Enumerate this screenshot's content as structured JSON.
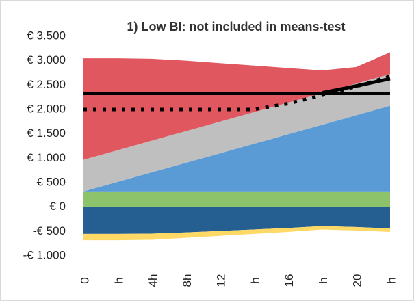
{
  "chart_data": {
    "type": "area",
    "title": "1) Low BI: not included in means-test",
    "categories": [
      "0",
      "h",
      "4h",
      "8h",
      "12",
      "h",
      "16",
      "h",
      "20",
      "h"
    ],
    "ylim": [
      -1000,
      3500
    ],
    "yticks": [
      {
        "value": -1000,
        "label": "-€ 1.000"
      },
      {
        "value": -500,
        "label": "-€ 500"
      },
      {
        "value": 0,
        "label": "€ 0"
      },
      {
        "value": 500,
        "label": "€ 500"
      },
      {
        "value": 1000,
        "label": "€ 1.000"
      },
      {
        "value": 1500,
        "label": "€ 1.500"
      },
      {
        "value": 2000,
        "label": "€ 2.000"
      },
      {
        "value": 2500,
        "label": "€ 2.500"
      },
      {
        "value": 3000,
        "label": "€ 3.000"
      },
      {
        "value": 3500,
        "label": "€ 3.500"
      }
    ],
    "grid": false,
    "series": [
      {
        "type": "area",
        "color": "#8dc36b",
        "values": [
          320,
          320,
          320,
          320,
          320,
          320,
          320,
          320,
          320,
          320
        ]
      },
      {
        "type": "area",
        "color": "#5b9bd5",
        "values": [
          0,
          195,
          390,
          585,
          780,
          975,
          1170,
          1365,
          1560,
          1755
        ]
      },
      {
        "type": "area",
        "color": "#bfbfbf",
        "values": [
          650,
          650,
          650,
          650,
          650,
          650,
          650,
          650,
          650,
          650
        ]
      },
      {
        "type": "area",
        "color": "#e0575f",
        "values": [
          2080,
          1885,
          1680,
          1445,
          1200,
          955,
          710,
          465,
          340,
          445
        ]
      },
      {
        "type": "area",
        "color": "#255e91",
        "values": [
          -550,
          -550,
          -545,
          -520,
          -490,
          -460,
          -430,
          -390,
          -410,
          -440
        ]
      },
      {
        "type": "area",
        "color": "#ffd966",
        "values": [
          -130,
          -130,
          -125,
          -110,
          -100,
          -90,
          -80,
          -70,
          -70,
          -70
        ]
      },
      {
        "type": "line",
        "color": "#000000",
        "dash": "solid",
        "values": [
          2330,
          2330,
          2330,
          2330,
          2330,
          2330,
          2330,
          2330,
          2330,
          2330
        ]
      },
      {
        "type": "line",
        "color": "#000000",
        "dash": "solid",
        "values": [
          null,
          null,
          null,
          null,
          null,
          null,
          null,
          2340,
          2480,
          2630
        ]
      },
      {
        "type": "line",
        "color": "#000000",
        "dash": "dotted",
        "values": [
          2000,
          2000,
          2000,
          2000,
          2000,
          2000,
          2120,
          2290,
          2470,
          2680
        ]
      }
    ]
  }
}
